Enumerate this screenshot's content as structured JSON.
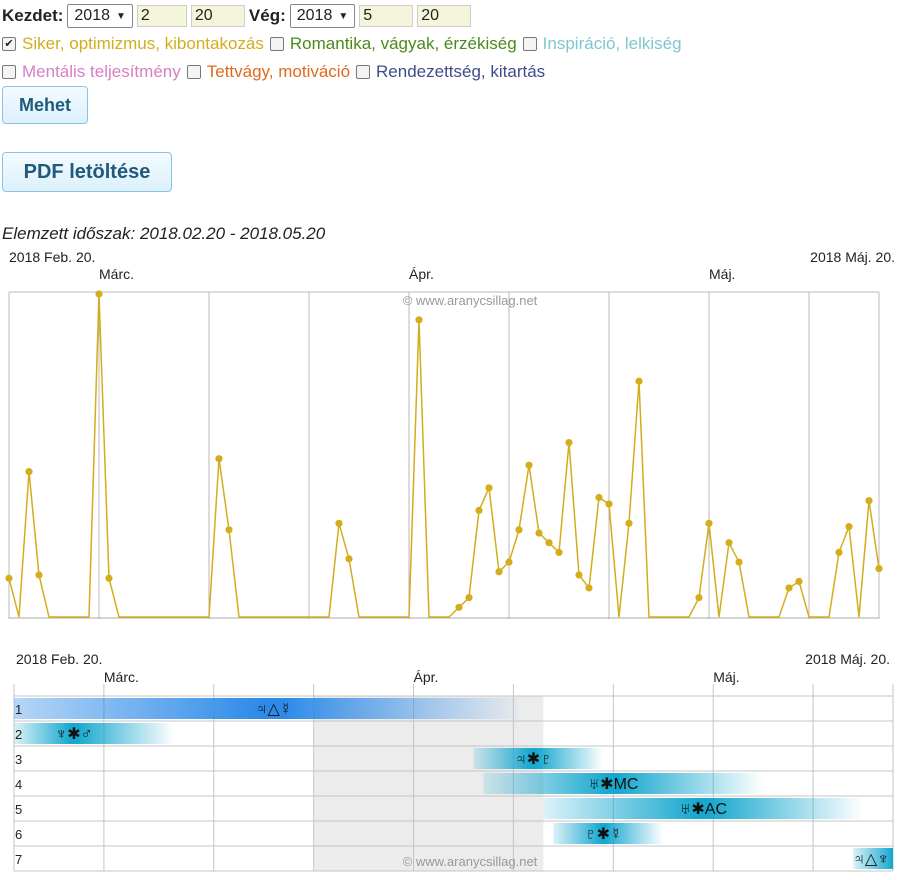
{
  "form": {
    "start_label": "Kezdet:",
    "start_year": "2018",
    "start_month": "2",
    "start_day": "20",
    "end_label": "Vég:",
    "end_year": "2018",
    "end_month": "5",
    "end_day": "20"
  },
  "categories": [
    {
      "label": "Siker, optimizmus, kibontakozás",
      "color": "#d4ad1c",
      "checked": true
    },
    {
      "label": "Romantika, vágyak, érzékiség",
      "color": "#4a8a1c",
      "checked": false
    },
    {
      "label": "Inspiráció, lelkiség",
      "color": "#7ec6d0",
      "checked": false
    },
    {
      "label": "Mentális teljesítmény",
      "color": "#d77fc3",
      "checked": false
    },
    {
      "label": "Tettvágy, motiváció",
      "color": "#e06a1c",
      "checked": false
    },
    {
      "label": "Rendezettség, kitartás",
      "color": "#3f4c8c",
      "checked": false
    }
  ],
  "buttons": {
    "go": "Mehet",
    "pdf": "PDF letöltése"
  },
  "period_text": "Elemzett időszak: 2018.02.20 - 2018.05.20",
  "chart_data": [
    {
      "type": "line",
      "start_label": "2018 Feb. 20.",
      "end_label": "2018 Máj. 20.",
      "month_labels": [
        {
          "label": "Márc.",
          "day": 9
        },
        {
          "label": "Ápr.",
          "day": 40
        },
        {
          "label": "Máj.",
          "day": 70
        }
      ],
      "grid_days": [
        9,
        20,
        30,
        40,
        50,
        60,
        70,
        80
      ],
      "watermark": "© www.aranycsillag.net",
      "line_color": "#d4ad1c",
      "series": [
        {
          "x": [
            0,
            1,
            2,
            3,
            4,
            5,
            6,
            7,
            8,
            9,
            10,
            11,
            12,
            13,
            14,
            15,
            16,
            17,
            18,
            19,
            20,
            21,
            22,
            23,
            24,
            25,
            26,
            27,
            28,
            29,
            30,
            31,
            32,
            33,
            34,
            35,
            36,
            37,
            38,
            39,
            40,
            41,
            42,
            43,
            44,
            45,
            46,
            47,
            48,
            49,
            50,
            51,
            52,
            53,
            54,
            55,
            56,
            57,
            58,
            59,
            60,
            61,
            62,
            63,
            64,
            65,
            66,
            67,
            68,
            69,
            70,
            71,
            72,
            73,
            74,
            75,
            76,
            77,
            78,
            79,
            80,
            81,
            82,
            83,
            84,
            85,
            86,
            87
          ],
          "y": [
            12,
            0,
            45,
            13,
            0,
            0,
            0,
            0,
            0,
            100,
            12,
            0,
            0,
            0,
            0,
            0,
            0,
            0,
            0,
            0,
            0,
            49,
            27,
            0,
            0,
            0,
            0,
            0,
            0,
            0,
            0,
            0,
            0,
            29,
            18,
            0,
            0,
            0,
            0,
            0,
            0,
            92,
            0,
            0,
            0,
            3,
            6,
            33,
            40,
            14,
            17,
            27,
            47,
            26,
            23,
            20,
            54,
            13,
            9,
            37,
            35,
            0,
            29,
            73,
            0,
            0,
            0,
            0,
            0,
            6,
            29,
            0,
            23,
            17,
            0,
            0,
            0,
            0,
            9,
            11,
            0,
            0,
            0,
            20,
            28,
            0,
            36,
            15
          ]
        }
      ]
    },
    {
      "type": "table",
      "start_label": "2018 Feb. 20.",
      "end_label": "2018 Máj. 20.",
      "month_labels": [
        {
          "label": "Márc.",
          "day": 9
        },
        {
          "label": "Ápr.",
          "day": 40
        },
        {
          "label": "Máj.",
          "day": 70
        }
      ],
      "watermark": "© www.aranycsillag.net",
      "shade": [
        30,
        53
      ],
      "rows": [
        {
          "n": "1",
          "symbol": "♃△☿",
          "start": 0,
          "end": 51,
          "peak": 26,
          "color": "#2d8ae8"
        },
        {
          "n": "2",
          "symbol": "♆✱♂",
          "start": 0,
          "end": 16,
          "peak": 6,
          "color": "#18a8cf"
        },
        {
          "n": "3",
          "symbol": "♃✱♇",
          "start": 46,
          "end": 59,
          "peak": 52,
          "color": "#18a8cf"
        },
        {
          "n": "4",
          "symbol": "♅✱MC",
          "start": 47,
          "end": 75,
          "peak": 60,
          "color": "#18a8cf"
        },
        {
          "n": "5",
          "symbol": "♅✱AC",
          "start": 53,
          "end": 85,
          "peak": 69,
          "color": "#18a8cf"
        },
        {
          "n": "6",
          "symbol": "♇✱☿",
          "start": 54,
          "end": 65,
          "peak": 59,
          "color": "#18a8cf"
        },
        {
          "n": "7",
          "symbol": "♃△♆",
          "start": 84,
          "end": 88,
          "peak": 88,
          "color": "#18a8cf"
        }
      ]
    }
  ]
}
